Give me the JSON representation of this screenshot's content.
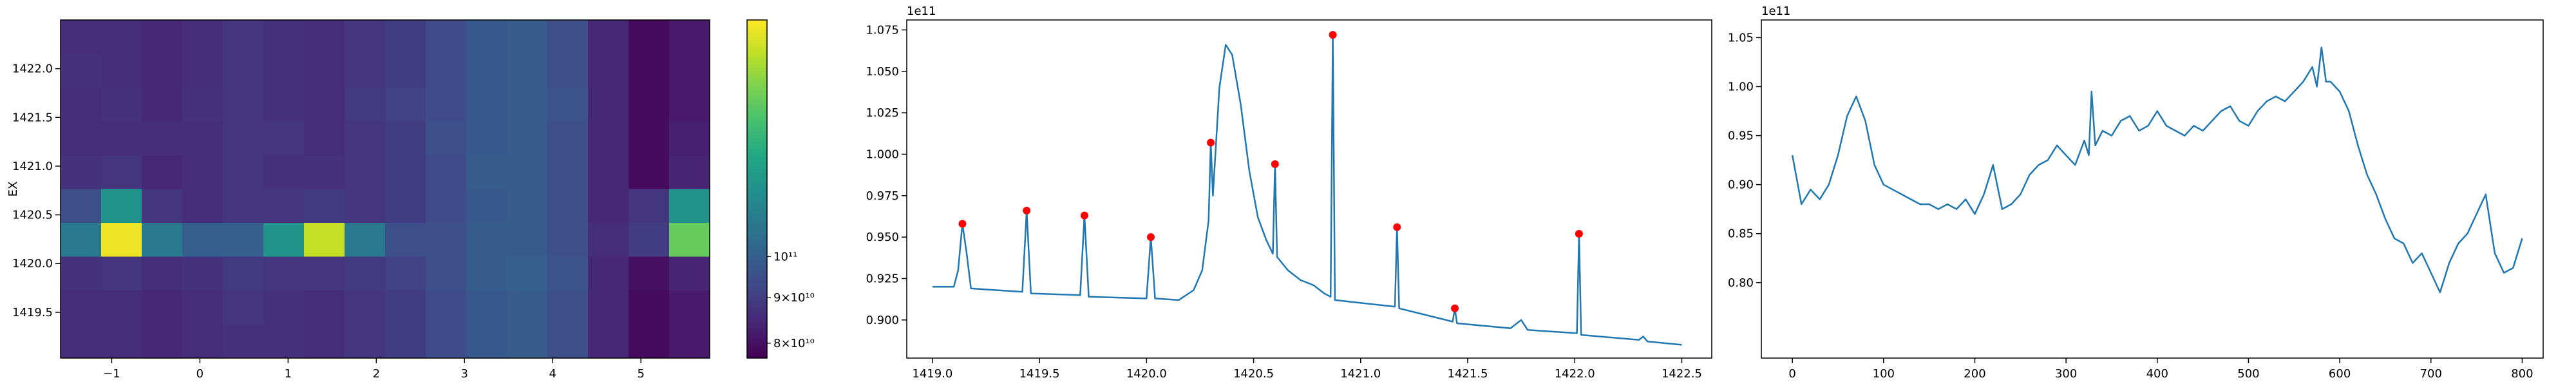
{
  "chart_data": [
    {
      "type": "heatmap",
      "ylabel": "EX",
      "xlim": [
        -1.58,
        5.78
      ],
      "ylim": [
        1419.03,
        1422.5
      ],
      "xticks": [
        {
          "value": -1,
          "label": "−1"
        },
        0,
        1,
        2,
        3,
        4,
        5
      ],
      "yticks": [
        {
          "value": 1419.5,
          "label": "1419.5"
        },
        {
          "value": 1420.0,
          "label": "1420.0"
        },
        {
          "value": 1420.5,
          "label": "1420.5"
        },
        {
          "value": 1421.0,
          "label": "1421.0"
        },
        {
          "value": 1421.5,
          "label": "1421.5"
        },
        {
          "value": 1422.0,
          "label": "1422.0"
        }
      ],
      "colormap": "viridis",
      "colorbar": {
        "scale": "log",
        "clim": [
          77000000000.0,
          184000000000.0
        ],
        "ticks": [
          {
            "value": 80000000000.0,
            "label": "8×10¹⁰"
          },
          {
            "value": 90000000000.0,
            "label": "9×10¹⁰"
          },
          {
            "value": 100000000000.0,
            "label": "10¹¹"
          }
        ]
      },
      "z": [
        [
          86000000000.0,
          86000000000.0,
          85000000000.0,
          86000000000.0,
          88000000000.0,
          87000000000.0,
          86000000000.0,
          88000000000.0,
          90000000000.0,
          94000000000.0,
          98000000000.0,
          99000000000.0,
          95000000000.0,
          85000000000.0,
          79000000000.0,
          82000000000.0
        ],
        [
          87000000000.0,
          86000000000.0,
          85000000000.0,
          86000000000.0,
          88000000000.0,
          87000000000.0,
          86000000000.0,
          88000000000.0,
          90000000000.0,
          94000000000.0,
          98000000000.0,
          99000000000.0,
          95000000000.0,
          85000000000.0,
          79000000000.0,
          82000000000.0
        ],
        [
          86000000000.0,
          87000000000.0,
          85000000000.0,
          87000000000.0,
          88000000000.0,
          87000000000.0,
          86000000000.0,
          89000000000.0,
          91000000000.0,
          94000000000.0,
          98000000000.0,
          99000000000.0,
          96000000000.0,
          85000000000.0,
          79000000000.0,
          82000000000.0
        ],
        [
          86000000000.0,
          86000000000.0,
          86000000000.0,
          86000000000.0,
          88000000000.0,
          88000000000.0,
          86000000000.0,
          88000000000.0,
          90000000000.0,
          95000000000.0,
          98000000000.0,
          99000000000.0,
          95000000000.0,
          85000000000.0,
          79000000000.0,
          83000000000.0
        ],
        [
          87000000000.0,
          88000000000.0,
          85000000000.0,
          86000000000.0,
          88000000000.0,
          87000000000.0,
          87000000000.0,
          88000000000.0,
          90000000000.0,
          94000000000.0,
          99000000000.0,
          99000000000.0,
          95000000000.0,
          85000000000.0,
          79000000000.0,
          84000000000.0
        ],
        [
          95000000000.0,
          120000000000.0,
          88000000000.0,
          86000000000.0,
          88000000000.0,
          88000000000.0,
          89000000000.0,
          88000000000.0,
          90000000000.0,
          94000000000.0,
          98000000000.0,
          99000000000.0,
          95000000000.0,
          85000000000.0,
          88000000000.0,
          120000000000.0
        ],
        [
          110000000000.0,
          180000000000.0,
          110000000000.0,
          100000000000.0,
          100000000000.0,
          120000000000.0,
          170000000000.0,
          110000000000.0,
          95000000000.0,
          95000000000.0,
          99000000000.0,
          99000000000.0,
          95000000000.0,
          86000000000.0,
          90000000000.0,
          150000000000.0
        ],
        [
          87000000000.0,
          88000000000.0,
          86000000000.0,
          87000000000.0,
          89000000000.0,
          88000000000.0,
          88000000000.0,
          89000000000.0,
          91000000000.0,
          95000000000.0,
          99000000000.0,
          100000000000.0,
          96000000000.0,
          85000000000.0,
          80000000000.0,
          84000000000.0
        ],
        [
          86000000000.0,
          86000000000.0,
          85000000000.0,
          86000000000.0,
          88000000000.0,
          87000000000.0,
          86000000000.0,
          88000000000.0,
          90000000000.0,
          94000000000.0,
          98000000000.0,
          99000000000.0,
          95000000000.0,
          85000000000.0,
          79000000000.0,
          82000000000.0
        ],
        [
          86000000000.0,
          86000000000.0,
          85000000000.0,
          86000000000.0,
          87000000000.0,
          87000000000.0,
          86000000000.0,
          88000000000.0,
          90000000000.0,
          94000000000.0,
          98000000000.0,
          99000000000.0,
          95000000000.0,
          85000000000.0,
          79000000000.0,
          82000000000.0
        ]
      ]
    },
    {
      "type": "line",
      "y_offset_label": "1e11",
      "xlim": [
        1418.88,
        1422.64
      ],
      "ylim": [
        0.877,
        1.081
      ],
      "xticks": [
        {
          "value": 1419.0,
          "label": "1419.0"
        },
        {
          "value": 1419.5,
          "label": "1419.5"
        },
        {
          "value": 1420.0,
          "label": "1420.0"
        },
        {
          "value": 1420.5,
          "label": "1420.5"
        },
        {
          "value": 1421.0,
          "label": "1421.0"
        },
        {
          "value": 1421.5,
          "label": "1421.5"
        },
        {
          "value": 1422.0,
          "label": "1422.0"
        },
        {
          "value": 1422.5,
          "label": "1422.5"
        }
      ],
      "yticks": [
        {
          "value": 0.9,
          "label": "0.900"
        },
        0.925,
        {
          "value": 0.95,
          "label": "0.950"
        },
        0.975,
        {
          "value": 1.0,
          "label": "1.000"
        },
        1.025,
        {
          "value": 1.05,
          "label": "1.050"
        },
        1.075
      ],
      "series": [
        {
          "color": "#1f77b4",
          "x": [
            1419.0,
            1419.1,
            1419.12,
            1419.14,
            1419.16,
            1419.18,
            1419.42,
            1419.44,
            1419.46,
            1419.69,
            1419.71,
            1419.73,
            1420.0,
            1420.02,
            1420.04,
            1420.15,
            1420.22,
            1420.26,
            1420.29,
            1420.3,
            1420.31,
            1420.34,
            1420.37,
            1420.4,
            1420.44,
            1420.48,
            1420.52,
            1420.56,
            1420.59,
            1420.6,
            1420.61,
            1420.66,
            1420.72,
            1420.78,
            1420.83,
            1420.86,
            1420.87,
            1420.88,
            1420.95,
            1421.16,
            1421.17,
            1421.18,
            1421.43,
            1421.44,
            1421.45,
            1421.7,
            1421.75,
            1421.78,
            1422.01,
            1422.02,
            1422.03,
            1422.3,
            1422.32,
            1422.34,
            1422.5
          ],
          "values": [
            0.92,
            0.92,
            0.93,
            0.958,
            0.94,
            0.919,
            0.917,
            0.966,
            0.916,
            0.915,
            0.963,
            0.914,
            0.913,
            0.95,
            0.913,
            0.912,
            0.918,
            0.93,
            0.96,
            1.007,
            0.975,
            1.04,
            1.066,
            1.06,
            1.03,
            0.99,
            0.962,
            0.948,
            0.94,
            0.994,
            0.938,
            0.93,
            0.924,
            0.921,
            0.916,
            0.914,
            1.072,
            0.912,
            0.911,
            0.908,
            0.956,
            0.907,
            0.899,
            0.907,
            0.898,
            0.895,
            0.9,
            0.894,
            0.892,
            0.952,
            0.891,
            0.888,
            0.89,
            0.887,
            0.885
          ]
        }
      ],
      "markers": {
        "color": "#ff0000",
        "x": [
          1419.14,
          1419.44,
          1419.71,
          1420.02,
          1420.3,
          1420.6,
          1420.87,
          1421.17,
          1421.44,
          1422.02
        ],
        "values": [
          0.958,
          0.966,
          0.963,
          0.95,
          1.007,
          0.994,
          1.072,
          0.956,
          0.907,
          0.952
        ]
      }
    },
    {
      "type": "line",
      "y_offset_label": "1e11",
      "xlim": [
        -34,
        823
      ],
      "ylim": [
        0.723,
        1.068
      ],
      "xticks": [
        0,
        100,
        200,
        300,
        400,
        500,
        600,
        700,
        800
      ],
      "yticks": [
        {
          "value": 0.8,
          "label": "0.80"
        },
        0.85,
        {
          "value": 0.9,
          "label": "0.90"
        },
        0.95,
        {
          "value": 1.0,
          "label": "1.00"
        },
        1.05
      ],
      "series": [
        {
          "color": "#1f77b4",
          "x": [
            0,
            2,
            10,
            20,
            30,
            40,
            50,
            60,
            70,
            80,
            90,
            100,
            110,
            120,
            130,
            140,
            150,
            160,
            170,
            180,
            190,
            200,
            210,
            220,
            230,
            240,
            250,
            260,
            270,
            280,
            290,
            300,
            310,
            320,
            325,
            328,
            332,
            340,
            350,
            360,
            370,
            380,
            390,
            400,
            410,
            420,
            430,
            440,
            450,
            460,
            470,
            480,
            490,
            500,
            510,
            520,
            530,
            540,
            550,
            560,
            570,
            575,
            580,
            585,
            590,
            600,
            610,
            620,
            630,
            640,
            650,
            660,
            670,
            680,
            690,
            700,
            710,
            720,
            730,
            740,
            750,
            760,
            765,
            770,
            780,
            790,
            800
          ],
          "values": [
            0.93,
            0.92,
            0.88,
            0.895,
            0.885,
            0.9,
            0.93,
            0.97,
            0.99,
            0.965,
            0.92,
            0.9,
            0.895,
            0.89,
            0.885,
            0.88,
            0.88,
            0.875,
            0.88,
            0.875,
            0.885,
            0.87,
            0.89,
            0.92,
            0.875,
            0.88,
            0.89,
            0.91,
            0.92,
            0.925,
            0.94,
            0.93,
            0.92,
            0.945,
            0.93,
            0.995,
            0.94,
            0.955,
            0.95,
            0.965,
            0.97,
            0.955,
            0.96,
            0.975,
            0.96,
            0.955,
            0.95,
            0.96,
            0.955,
            0.965,
            0.975,
            0.98,
            0.965,
            0.96,
            0.975,
            0.985,
            0.99,
            0.985,
            0.995,
            1.005,
            1.02,
            1.0,
            1.04,
            1.005,
            1.005,
            0.995,
            0.975,
            0.94,
            0.91,
            0.89,
            0.865,
            0.845,
            0.84,
            0.82,
            0.83,
            0.81,
            0.79,
            0.82,
            0.84,
            0.85,
            0.87,
            0.89,
            0.86,
            0.83,
            0.81,
            0.815,
            0.845
          ]
        }
      ]
    }
  ]
}
